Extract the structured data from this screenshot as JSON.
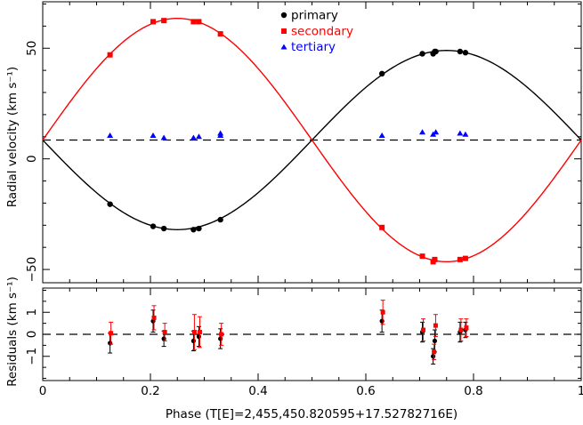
{
  "chart_data": {
    "type": "scatter",
    "x_label": "Phase (T[E]=2,455,450.820595+17.52782716E)",
    "x_ticks": [
      "0",
      "0.2",
      "0.4",
      "0.6",
      "0.8",
      "1"
    ],
    "x_tick_values": [
      0,
      0.2,
      0.4,
      0.6,
      0.8,
      1
    ],
    "xlim": [
      0,
      1
    ],
    "panels": [
      {
        "id": "rv",
        "ylabel": "Radial velocity (km s⁻¹)",
        "ylim": [
          -56,
          71
        ],
        "y_ticks": [
          "-50",
          "0",
          "50"
        ],
        "y_tick_values": [
          -50,
          0,
          50
        ],
        "systemic_velocity": 8.5,
        "legend": {
          "placement": "top-center",
          "entries": [
            {
              "label": "primary",
              "marker": "circle",
              "color": "#000000"
            },
            {
              "label": "secondary",
              "marker": "square",
              "color": "#ff0000"
            },
            {
              "label": "tertiary",
              "marker": "triangle",
              "color": "#0000ff"
            }
          ]
        },
        "model_curves": [
          {
            "name": "primary",
            "color": "#000000",
            "gamma": 8.5,
            "K": 40.5,
            "sign": -1
          },
          {
            "name": "secondary",
            "color": "#ff0000",
            "gamma": 8.5,
            "K": 55,
            "sign": 1
          }
        ],
        "series": [
          {
            "name": "primary",
            "marker": "circle",
            "color": "#000000",
            "x": [
              0.125,
              0.205,
              0.225,
              0.28,
              0.29,
              0.33,
              0.63,
              0.705,
              0.725,
              0.728,
              0.73,
              0.775,
              0.785
            ],
            "y": [
              -20.5,
              -30.5,
              -31.5,
              -32.0,
              -31.5,
              -27.5,
              38.5,
              47.5,
              47.5,
              48.5,
              48.5,
              48.5,
              48.0
            ]
          },
          {
            "name": "secondary",
            "marker": "square",
            "color": "#ff0000",
            "x": [
              0.125,
              0.205,
              0.225,
              0.28,
              0.29,
              0.33,
              0.63,
              0.705,
              0.725,
              0.728,
              0.775,
              0.785
            ],
            "y": [
              47.0,
              62.0,
              62.5,
              62.0,
              62.0,
              56.5,
              -31.0,
              -44.0,
              -46.5,
              -45.5,
              -45.5,
              -45.0
            ]
          },
          {
            "name": "tertiary",
            "marker": "triangle",
            "color": "#0000ff",
            "x": [
              0.125,
              0.205,
              0.225,
              0.28,
              0.29,
              0.33,
              0.33,
              0.63,
              0.705,
              0.725,
              0.73,
              0.775,
              0.785
            ],
            "y": [
              10.5,
              10.5,
              9.5,
              9.5,
              10.0,
              11.5,
              10.5,
              10.5,
              12.0,
              11.0,
              12.0,
              11.5,
              11.0
            ]
          }
        ]
      },
      {
        "id": "residuals",
        "ylabel": "Residuals (km s⁻¹)",
        "ylim": [
          -2.1,
          2.1
        ],
        "y_ticks": [
          "-1",
          "0",
          "1"
        ],
        "y_tick_values": [
          -1,
          0,
          1
        ],
        "zero_line": 0,
        "series": [
          {
            "name": "primary",
            "marker": "circle",
            "color": "#000000",
            "x": [
              0.125,
              0.205,
              0.225,
              0.28,
              0.29,
              0.33,
              0.63,
              0.705,
              0.725,
              0.728,
              0.775,
              0.785
            ],
            "y": [
              -0.4,
              0.6,
              -0.2,
              -0.3,
              -0.1,
              -0.2,
              0.6,
              0.1,
              -1.0,
              -0.3,
              0.1,
              0.2
            ],
            "err": [
              0.45,
              0.5,
              0.35,
              0.45,
              0.45,
              0.45,
              0.5,
              0.45,
              0.35,
              0.5,
              0.45,
              0.35
            ]
          },
          {
            "name": "secondary",
            "marker": "square",
            "color": "#ff0000",
            "x": [
              0.125,
              0.205,
              0.225,
              0.28,
              0.29,
              0.33,
              0.63,
              0.705,
              0.725,
              0.728,
              0.775,
              0.785
            ],
            "y": [
              0.05,
              0.75,
              0.1,
              0.1,
              0.1,
              0.0,
              1.0,
              0.2,
              -0.8,
              0.4,
              0.2,
              0.3
            ],
            "err": [
              0.5,
              0.55,
              0.4,
              0.8,
              0.7,
              0.5,
              0.55,
              0.5,
              0.35,
              0.5,
              0.5,
              0.4
            ]
          }
        ]
      }
    ]
  }
}
